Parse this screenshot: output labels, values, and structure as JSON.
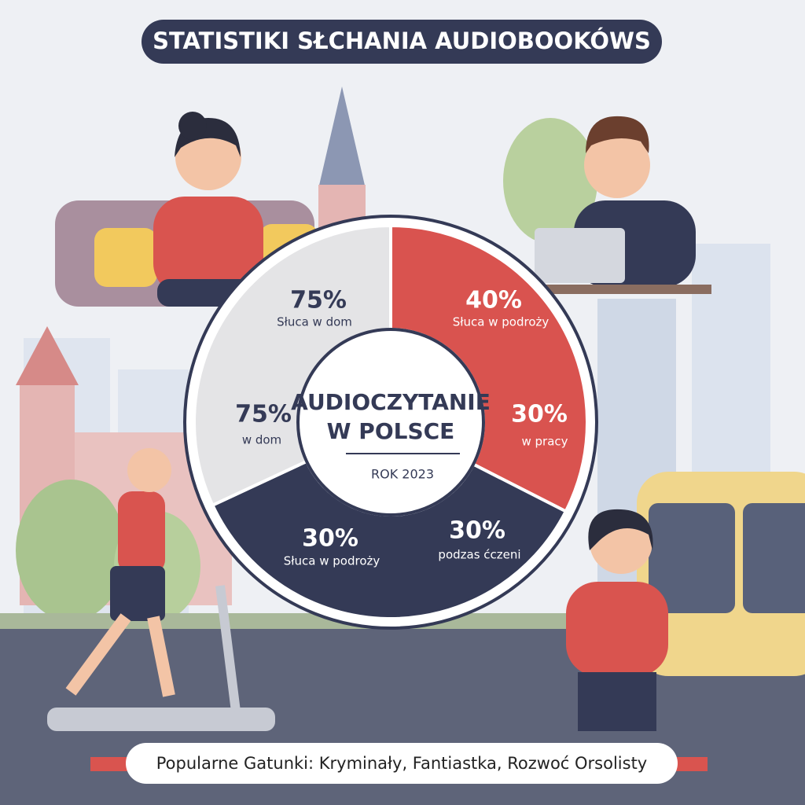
{
  "header": {
    "title": "STATISTIKI SŁCHANIA AUDIOBOOKÓWS"
  },
  "donut": {
    "center": {
      "line1": "AUDIOCZYTANIE",
      "line2": "W POLSCE",
      "year": "ROK 2023"
    },
    "segments": [
      {
        "value_label": "75%",
        "label": "Słuca w dom"
      },
      {
        "value_label": "40%",
        "label": "Słuca w podroży"
      },
      {
        "value_label": "30%",
        "label": "w pracy"
      },
      {
        "value_label": "30%",
        "label": "podzas ćczeni"
      },
      {
        "value_label": "30%",
        "label": "Słuca w podroży"
      },
      {
        "value_label": "75%",
        "label": "w dom"
      }
    ]
  },
  "footer": {
    "text": "Popularne Gatunki: Kryminały, Fantiastka, Rozwoć Orsolisty"
  }
}
